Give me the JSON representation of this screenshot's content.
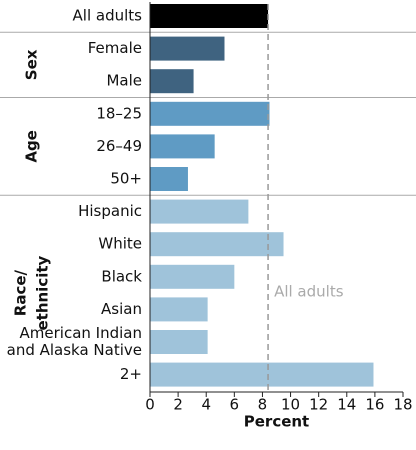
{
  "chart_data": {
    "type": "bar",
    "orientation": "horizontal",
    "xlabel": "Percent",
    "xlim": [
      0,
      18
    ],
    "xticks": [
      0,
      2,
      4,
      6,
      8,
      10,
      12,
      14,
      16,
      18
    ],
    "reference_label": "All adults",
    "groups": [
      {
        "categories": [
          [
            "All adults"
          ]
        ],
        "values": [
          8.4
        ],
        "color": "#000000"
      },
      {
        "name": [
          "Sex"
        ],
        "categories": [
          [
            "Female"
          ],
          [
            "Male"
          ]
        ],
        "values": [
          5.3,
          3.1
        ],
        "color": "#3f6380"
      },
      {
        "name": [
          "Age"
        ],
        "categories": [
          [
            "18–25"
          ],
          [
            "26–49"
          ],
          [
            "50+"
          ]
        ],
        "values": [
          8.5,
          4.6,
          2.7
        ],
        "color": "#5f9bc4"
      },
      {
        "name": [
          "Race/",
          "ethnicity"
        ],
        "categories": [
          [
            "Hispanic"
          ],
          [
            "White"
          ],
          [
            "Black"
          ],
          [
            "Asian"
          ],
          [
            "American Indian",
            "and Alaska Native"
          ],
          [
            "2+"
          ]
        ],
        "values": [
          7.0,
          9.5,
          6.0,
          4.1,
          4.1,
          15.9
        ],
        "color": "#9fc3da"
      }
    ]
  }
}
